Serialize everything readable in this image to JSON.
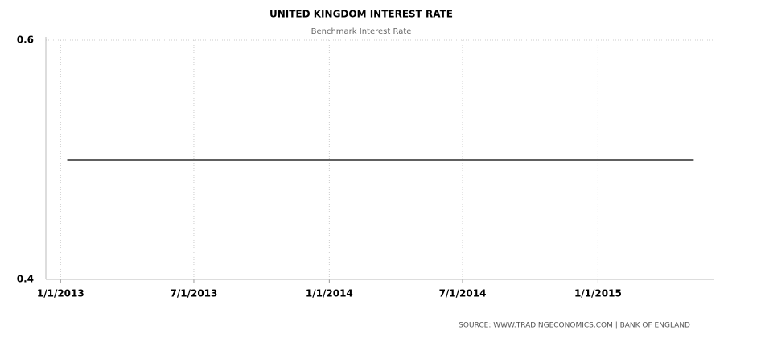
{
  "chart_data": {
    "type": "line",
    "title": "UNITED KINGDOM INTEREST RATE",
    "subtitle": "Benchmark Interest Rate",
    "source": "SOURCE: WWW.TRADINGECONOMICS.COM | BANK OF ENGLAND",
    "x": [
      "2013-01-10",
      "2015-05-11"
    ],
    "values": [
      0.5,
      0.5
    ],
    "color": "#000000",
    "xlim": [
      "2012-12-12",
      "2015-06-08"
    ],
    "xticks": [
      {
        "value": "2013-01-01",
        "label": "1/1/2013"
      },
      {
        "value": "2013-07-01",
        "label": "7/1/2013"
      },
      {
        "value": "2014-01-01",
        "label": "1/1/2014"
      },
      {
        "value": "2014-07-01",
        "label": "7/1/2014"
      },
      {
        "value": "2015-01-01",
        "label": "1/1/2015"
      }
    ],
    "ylim": [
      0.4,
      0.6
    ],
    "yticks": [
      0.4,
      0.6
    ],
    "grid": true
  }
}
